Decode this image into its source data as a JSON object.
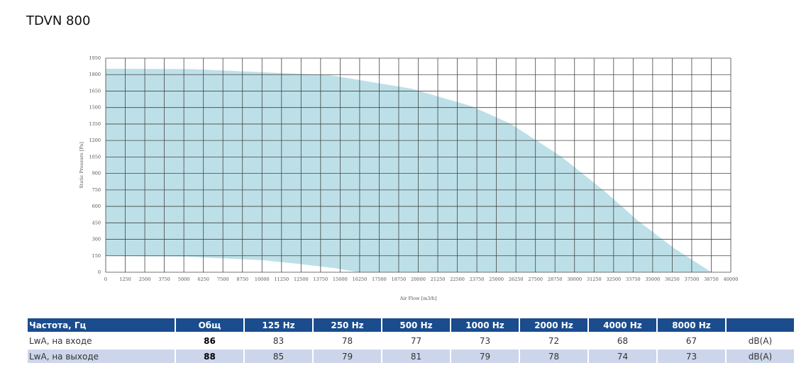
{
  "title": "TDVN 800",
  "chart_data": {
    "type": "range_area",
    "x_label": "Air Flow [m3/h]",
    "y_label": "Static Pressure [Pa]",
    "color": "#bde0e8",
    "series": [
      {
        "x": [
          0,
          5500,
          14350,
          19570,
          23430,
          25930,
          29100,
          31830,
          34100,
          36360,
          38770
        ],
        "values": [
          1853,
          1850,
          1795,
          1672,
          1511,
          1350,
          1059,
          749,
          465,
          220,
          0
        ]
      },
      {
        "x": [
          0,
          5040,
          10040,
          12300,
          14570,
          16160
        ],
        "values": [
          148,
          142,
          110,
          77,
          39,
          0
        ]
      }
    ],
    "xlim": [
      0,
      40000
    ],
    "xticks": [
      0,
      1250,
      2500,
      3750,
      5000,
      6250,
      7500,
      8750,
      10000,
      11250,
      12500,
      13750,
      15000,
      16250,
      17500,
      18750,
      20000,
      21250,
      22500,
      23750,
      25000,
      26250,
      27500,
      28750,
      30000,
      31250,
      32500,
      33750,
      35000,
      36250,
      37500,
      38750,
      40000
    ],
    "ylim": [
      0,
      1950
    ],
    "yticks": [
      0,
      150,
      300,
      450,
      600,
      750,
      900,
      1050,
      1200,
      1350,
      1500,
      1650,
      1800,
      1950
    ],
    "grid": true
  },
  "table": {
    "header": [
      "Частота, Гц",
      "Общ",
      "125 Hz",
      "250 Hz",
      "500 Hz",
      "1000 Hz",
      "2000 Hz",
      "4000 Hz",
      "8000 Hz"
    ],
    "rows": [
      [
        "LwA, на входе",
        "86",
        "83",
        "78",
        "77",
        "73",
        "72",
        "68",
        "67",
        "dB(A)"
      ],
      [
        "LwA, на выходе",
        "88",
        "85",
        "79",
        "81",
        "79",
        "78",
        "74",
        "73",
        "dB(A)"
      ]
    ]
  }
}
